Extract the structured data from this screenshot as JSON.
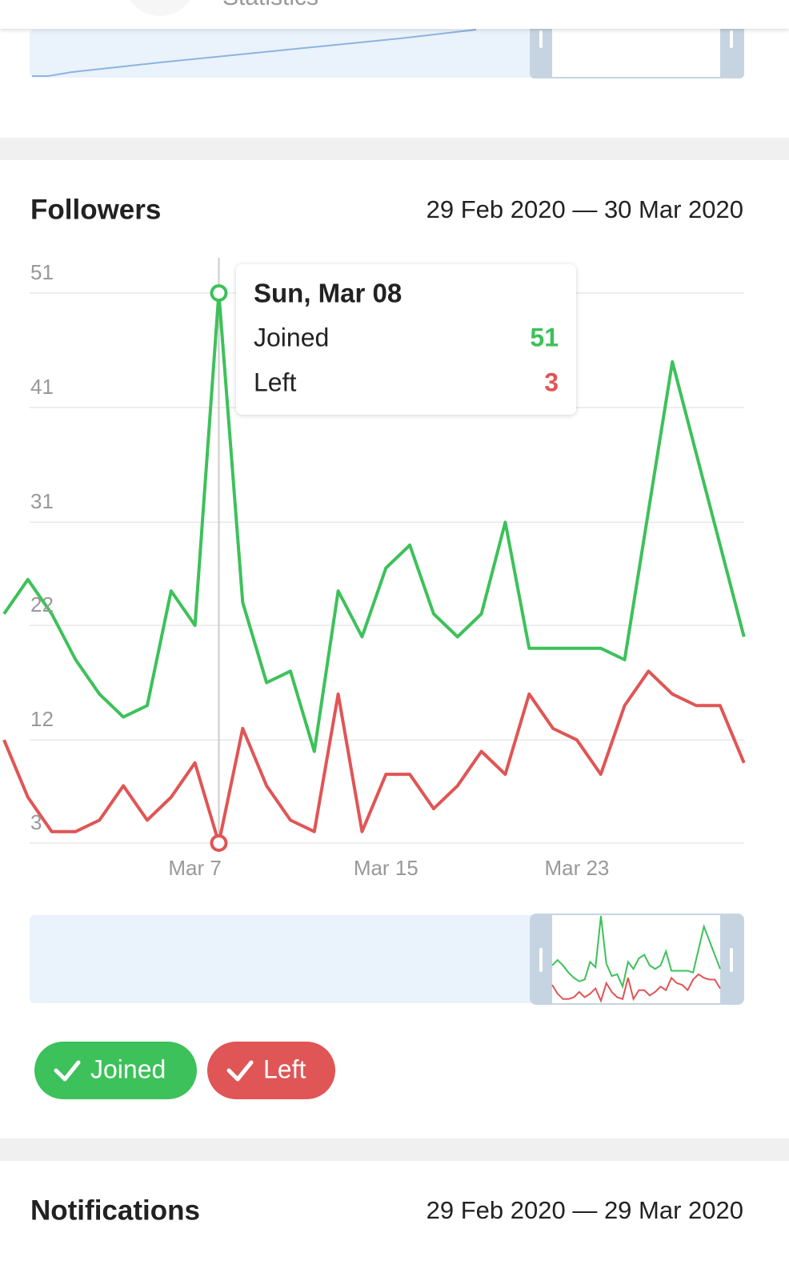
{
  "header": {
    "title": "Statistics"
  },
  "sections": [
    {
      "title": "Followers",
      "date_range": "29 Feb 2020 — 30 Mar 2020"
    },
    {
      "title": "Notifications",
      "date_range": "29 Feb 2020 — 29 Mar 2020"
    }
  ],
  "chart_data": {
    "type": "line",
    "categories": [
      null,
      null,
      null,
      null,
      null,
      null,
      null,
      null,
      "Mar 7",
      null,
      null,
      null,
      null,
      null,
      null,
      null,
      "Mar 15",
      null,
      null,
      null,
      null,
      null,
      null,
      null,
      "Mar 23",
      null,
      null,
      null,
      null,
      null,
      null,
      null
    ],
    "series": [
      {
        "name": "Joined",
        "color": "#3dc15a",
        "values": [
          23,
          26,
          23,
          19,
          16,
          14,
          15,
          25,
          22,
          51,
          24,
          17,
          18,
          11,
          25,
          21,
          27,
          29,
          23,
          21,
          23,
          31,
          20,
          20,
          20,
          20,
          19,
          32,
          45,
          37,
          29,
          21
        ]
      },
      {
        "name": "Left",
        "color": "#e05555",
        "values": [
          12,
          7,
          4,
          4,
          5,
          8,
          5,
          7,
          10,
          3,
          13,
          8,
          5,
          4,
          16,
          4,
          9,
          9,
          6,
          8,
          11,
          9,
          16,
          13,
          12,
          9,
          15,
          18,
          16,
          15,
          15,
          10
        ]
      }
    ],
    "ylim": [
      3,
      51
    ],
    "yticks": [
      3,
      12,
      22,
      31,
      41,
      51
    ],
    "grid": true,
    "tooltip": {
      "title": "Sun, Mar 08",
      "index": 9
    }
  }
}
